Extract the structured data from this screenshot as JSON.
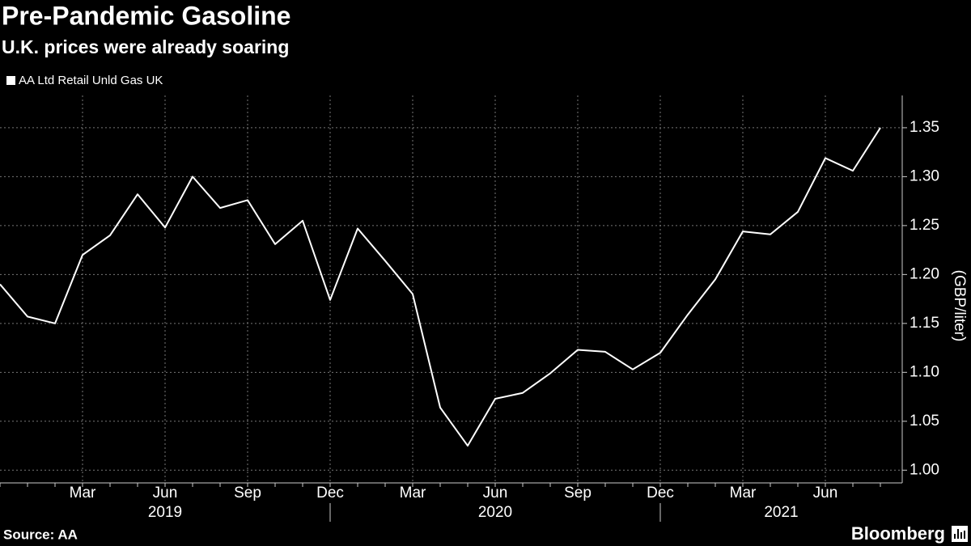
{
  "chart_data": {
    "type": "line",
    "title": "Pre-Pandemic Gasoline",
    "subtitle": "U.K. prices were already soaring",
    "y_label": "(GBP/liter)",
    "source": "Source: AA",
    "brand": "Bloomberg",
    "x": [
      "2018-12",
      "2019-01",
      "2019-02",
      "2019-03",
      "2019-04",
      "2019-05",
      "2019-06",
      "2019-07",
      "2019-08",
      "2019-09",
      "2019-10",
      "2019-11",
      "2019-12",
      "2020-01",
      "2020-02",
      "2020-03",
      "2020-04",
      "2020-05",
      "2020-06",
      "2020-07",
      "2020-08",
      "2020-09",
      "2020-10",
      "2020-11",
      "2020-12",
      "2021-01",
      "2021-02",
      "2021-03",
      "2021-04",
      "2021-05",
      "2021-06",
      "2021-07",
      "2021-08"
    ],
    "series": [
      {
        "name": "AA Ltd Retail Unld Gas UK",
        "color": "#ffffff",
        "values": [
          1.19,
          1.157,
          1.15,
          1.22,
          1.24,
          1.282,
          1.248,
          1.3,
          1.268,
          1.276,
          1.231,
          1.255,
          1.174,
          1.247,
          1.214,
          1.18,
          1.064,
          1.025,
          1.073,
          1.079,
          1.099,
          1.123,
          1.121,
          1.103,
          1.12,
          1.159,
          1.195,
          1.244,
          1.241,
          1.264,
          1.319,
          1.306,
          1.35
        ]
      }
    ],
    "xticks": [
      {
        "value": "2019-03",
        "label": "Mar"
      },
      {
        "value": "2019-06",
        "label": "Jun"
      },
      {
        "value": "2019-09",
        "label": "Sep"
      },
      {
        "value": "2019-12",
        "label": "Dec"
      },
      {
        "value": "2020-03",
        "label": "Mar"
      },
      {
        "value": "2020-06",
        "label": "Jun"
      },
      {
        "value": "2020-09",
        "label": "Sep"
      },
      {
        "value": "2020-12",
        "label": "Dec"
      },
      {
        "value": "2021-03",
        "label": "Mar"
      },
      {
        "value": "2021-06",
        "label": "Jun"
      }
    ],
    "xgroups": [
      "2019",
      "2020",
      "2021"
    ],
    "ylim": [
      0.987,
      1.383
    ],
    "yticks": [
      {
        "value": 1.0,
        "label": "1.00"
      },
      {
        "value": 1.05,
        "label": "1.05"
      },
      {
        "value": 1.1,
        "label": "1.10"
      },
      {
        "value": 1.15,
        "label": "1.15"
      },
      {
        "value": 1.2,
        "label": "1.20"
      },
      {
        "value": 1.25,
        "label": "1.25"
      },
      {
        "value": 1.3,
        "label": "1.30"
      },
      {
        "value": 1.35,
        "label": "1.35"
      }
    ],
    "grid": true
  }
}
